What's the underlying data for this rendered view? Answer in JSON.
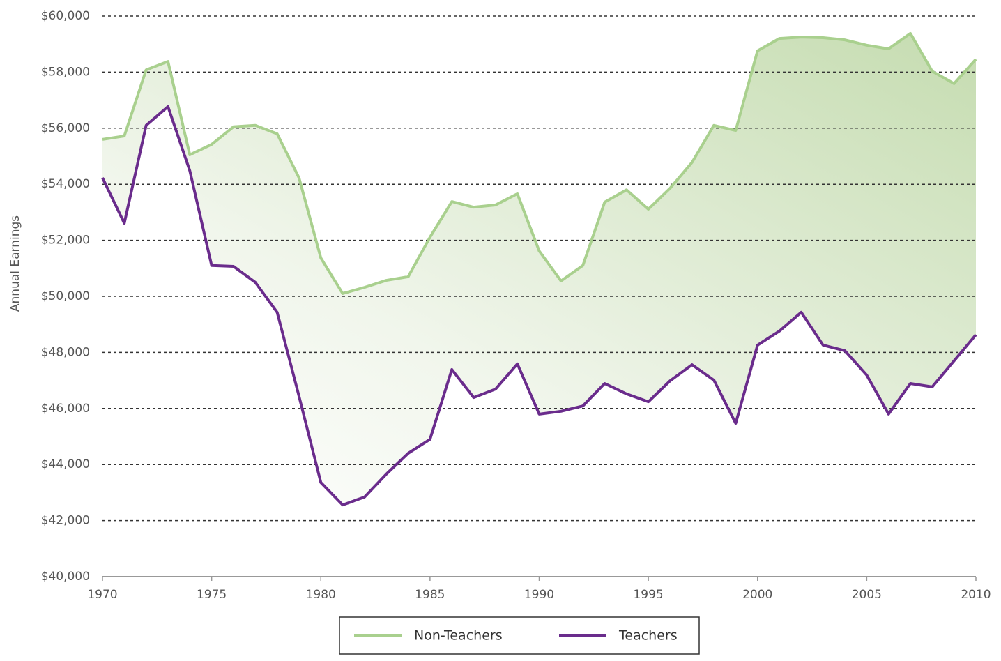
{
  "chart_data": {
    "type": "line",
    "y_label": "Annual Earnings",
    "x": [
      1970,
      1971,
      1972,
      1973,
      1974,
      1975,
      1976,
      1977,
      1978,
      1979,
      1980,
      1981,
      1982,
      1983,
      1984,
      1985,
      1986,
      1987,
      1988,
      1989,
      1990,
      1991,
      1992,
      1993,
      1994,
      1995,
      1996,
      1997,
      1998,
      1999,
      2000,
      2001,
      2002,
      2003,
      2004,
      2005,
      2006,
      2007,
      2008,
      2009,
      2010
    ],
    "series": [
      {
        "name": "Non-Teachers",
        "color": "#a9d08e",
        "values": [
          55600,
          55720,
          58080,
          58380,
          55050,
          55420,
          56050,
          56100,
          55800,
          54230,
          51370,
          50100,
          50320,
          50570,
          50700,
          52110,
          53380,
          53180,
          53260,
          53660,
          51620,
          50550,
          51100,
          53360,
          53800,
          53110,
          53860,
          54780,
          56100,
          55920,
          58760,
          59200,
          59250,
          59230,
          59150,
          58960,
          58830,
          59380,
          58030,
          57590,
          58460
        ]
      },
      {
        "name": "Teachers",
        "color": "#6a2c8c",
        "values": [
          54230,
          52610,
          56100,
          56770,
          54480,
          51100,
          51070,
          50500,
          49430,
          46440,
          43360,
          42560,
          42840,
          43660,
          44400,
          44900,
          47390,
          46390,
          46690,
          47590,
          45800,
          45900,
          46090,
          46890,
          46520,
          46240,
          46990,
          47560,
          47010,
          45470,
          48260,
          48760,
          49430,
          48260,
          48060,
          47190,
          45800,
          46890,
          46770,
          47700,
          48630
        ]
      }
    ],
    "xlim": [
      1970,
      2010
    ],
    "xticks": [
      1970,
      1975,
      1980,
      1985,
      1990,
      1995,
      2000,
      2005,
      2010
    ],
    "ylim": [
      40000,
      60000
    ],
    "yticks": [
      {
        "value": 40000,
        "label": "$40,000"
      },
      {
        "value": 42000,
        "label": "$42,000"
      },
      {
        "value": 44000,
        "label": "$44,000"
      },
      {
        "value": 46000,
        "label": "$46,000"
      },
      {
        "value": 48000,
        "label": "$48,000"
      },
      {
        "value": 50000,
        "label": "$50,000"
      },
      {
        "value": 52000,
        "label": "$52,000"
      },
      {
        "value": 54000,
        "label": "$54,000"
      },
      {
        "value": 56000,
        "label": "$56,000"
      },
      {
        "value": 58000,
        "label": "$58,000"
      },
      {
        "value": 60000,
        "label": "$60,000"
      }
    ],
    "grid": true,
    "legend": "bottom"
  }
}
